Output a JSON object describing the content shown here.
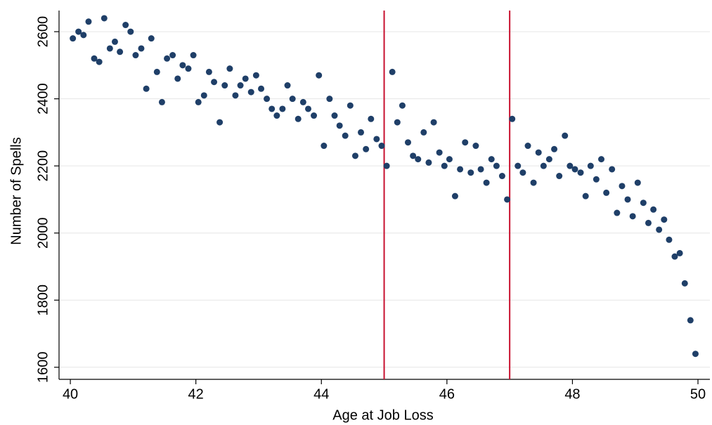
{
  "chart_data": {
    "type": "scatter",
    "x_label": "Age at Job Loss",
    "y_label": "Number of Spells",
    "xlim": [
      39.82,
      50.19
    ],
    "ylim": [
      1564,
      2663
    ],
    "xticks": [
      40,
      42,
      44,
      46,
      48,
      50
    ],
    "yticks": [
      1600,
      1800,
      2000,
      2200,
      2400,
      2600
    ],
    "grid": true,
    "color": "#1f3f68",
    "vlines": [
      45,
      47
    ],
    "vline_color": "#c8102e",
    "series": [
      {
        "name": "Number of Spells",
        "color": "#1f3f68",
        "x": [
          40.04,
          40.13,
          40.21,
          40.29,
          40.38,
          40.46,
          40.54,
          40.63,
          40.71,
          40.79,
          40.88,
          40.96,
          41.04,
          41.13,
          41.21,
          41.29,
          41.38,
          41.46,
          41.54,
          41.63,
          41.71,
          41.79,
          41.88,
          41.96,
          42.04,
          42.13,
          42.21,
          42.29,
          42.38,
          42.46,
          42.54,
          42.63,
          42.71,
          42.79,
          42.88,
          42.96,
          43.04,
          43.13,
          43.21,
          43.29,
          43.38,
          43.46,
          43.54,
          43.63,
          43.71,
          43.79,
          43.88,
          43.96,
          44.04,
          44.13,
          44.21,
          44.29,
          44.38,
          44.46,
          44.54,
          44.63,
          44.71,
          44.79,
          44.88,
          44.96,
          45.04,
          45.13,
          45.21,
          45.29,
          45.38,
          45.46,
          45.54,
          45.63,
          45.71,
          45.79,
          45.88,
          45.96,
          46.04,
          46.13,
          46.21,
          46.29,
          46.38,
          46.46,
          46.54,
          46.63,
          46.71,
          46.79,
          46.88,
          46.96,
          47.04,
          47.13,
          47.21,
          47.29,
          47.38,
          47.46,
          47.54,
          47.63,
          47.71,
          47.79,
          47.88,
          47.96,
          48.04,
          48.13,
          48.21,
          48.29,
          48.38,
          48.46,
          48.54,
          48.63,
          48.71,
          48.79,
          48.88,
          48.96,
          49.04,
          49.13,
          49.21,
          49.29,
          49.38,
          49.46,
          49.54,
          49.63,
          49.71,
          49.79,
          49.88,
          49.96
        ],
        "values": [
          2580,
          2600,
          2590,
          2630,
          2520,
          2510,
          2640,
          2550,
          2570,
          2540,
          2620,
          2600,
          2530,
          2550,
          2430,
          2580,
          2480,
          2390,
          2520,
          2530,
          2460,
          2500,
          2490,
          2530,
          2390,
          2410,
          2480,
          2450,
          2330,
          2440,
          2490,
          2410,
          2440,
          2460,
          2420,
          2470,
          2430,
          2400,
          2370,
          2350,
          2370,
          2440,
          2400,
          2340,
          2390,
          2370,
          2350,
          2470,
          2260,
          2400,
          2350,
          2320,
          2290,
          2380,
          2230,
          2300,
          2250,
          2340,
          2280,
          2260,
          2200,
          2480,
          2330,
          2380,
          2270,
          2230,
          2220,
          2300,
          2210,
          2330,
          2240,
          2200,
          2220,
          2110,
          2190,
          2270,
          2180,
          2260,
          2190,
          2150,
          2220,
          2200,
          2170,
          2100,
          2340,
          2200,
          2180,
          2260,
          2150,
          2240,
          2200,
          2220,
          2250,
          2170,
          2290,
          2200,
          2190,
          2180,
          2110,
          2200,
          2160,
          2220,
          2120,
          2190,
          2060,
          2140,
          2100,
          2050,
          2150,
          2090,
          2030,
          2070,
          2010,
          2040,
          1980,
          1930,
          1940,
          1850,
          1740,
          1640
        ]
      }
    ]
  }
}
